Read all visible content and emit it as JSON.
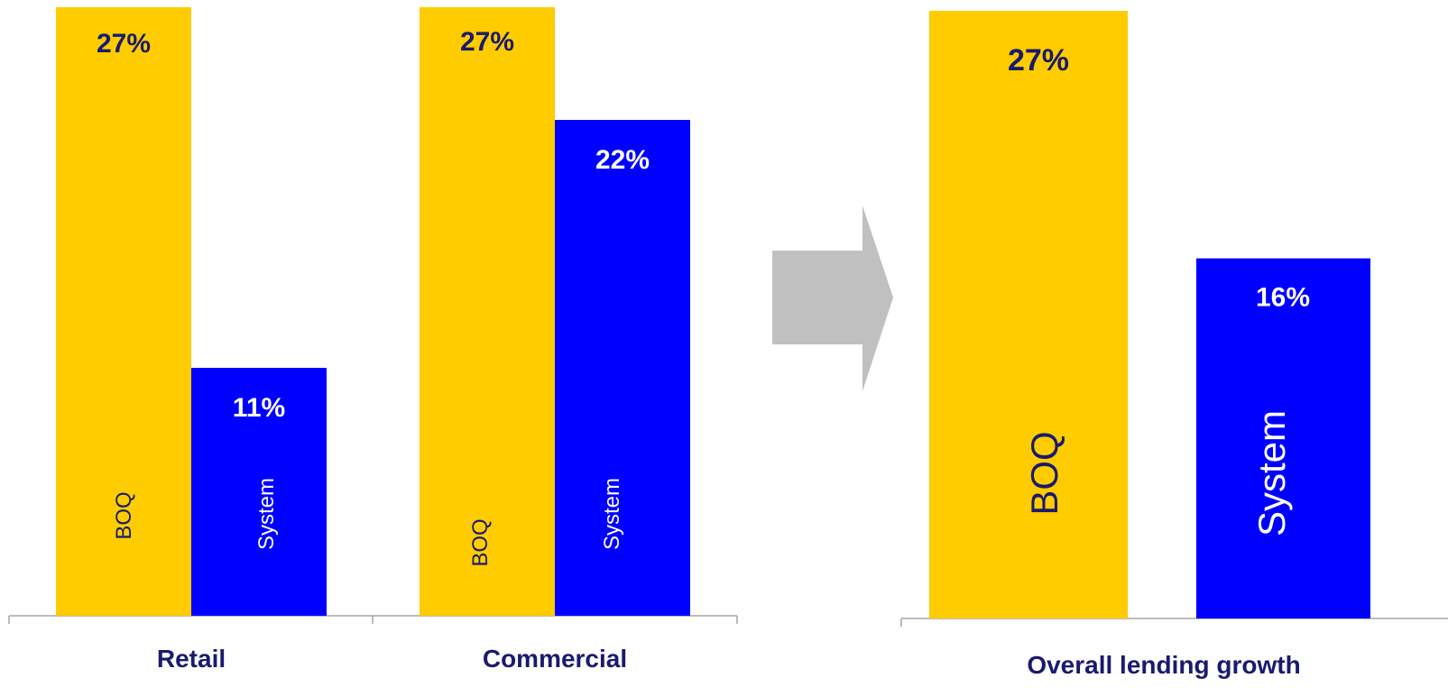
{
  "colors": {
    "boq": "#ffcc00",
    "system": "#0000ff",
    "label_dark": "#1a1a6e",
    "label_light": "#ffffff",
    "arrow": "#c0c0c0",
    "axis": "#a6a6a6"
  },
  "chart_data": [
    {
      "type": "bar",
      "categories": [
        "Retail",
        "Commercial"
      ],
      "series": [
        {
          "name": "BOQ",
          "values": [
            27,
            27
          ],
          "labels": [
            "27%",
            "27%"
          ]
        },
        {
          "name": "System",
          "values": [
            11,
            22
          ],
          "labels": [
            "11%",
            "22%"
          ]
        }
      ],
      "unit": "%"
    },
    {
      "type": "bar",
      "categories": [
        "Overall lending growth"
      ],
      "series": [
        {
          "name": "BOQ",
          "values": [
            27
          ],
          "labels": [
            "27%"
          ]
        },
        {
          "name": "System",
          "values": [
            16
          ],
          "labels": [
            "16%"
          ]
        }
      ],
      "unit": "%"
    }
  ],
  "arrow_icon": "right-arrow-icon"
}
